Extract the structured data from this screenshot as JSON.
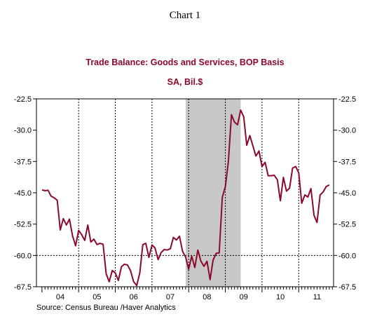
{
  "page": {
    "heading": "Chart 1"
  },
  "chart_data": {
    "type": "line",
    "title": "Trade Balance:  Goods and Services, BOP Basis",
    "subtitle": "SA, Bil.$",
    "source": "Source:  Census Bureau /Haver Analytics",
    "x_tick_labels": [
      "04",
      "05",
      "06",
      "07",
      "08",
      "09",
      "10",
      "11"
    ],
    "x_range": [
      2004.0,
      2011.75
    ],
    "y_tick_labels": [
      "-22.5",
      "-30.0",
      "-37.5",
      "-45.0",
      "-52.5",
      "-60.0",
      "-67.5"
    ],
    "y_ticks": [
      -22.5,
      -30.0,
      -37.5,
      -45.0,
      -52.5,
      -60.0,
      -67.5
    ],
    "ylim": [
      -67.5,
      -22.5
    ],
    "dashed_gridlines_at_years": [
      2005,
      2006,
      2007,
      2008,
      2009,
      2010,
      2011
    ],
    "dashed_gridline_y": -60.0,
    "recession_shading": {
      "start": 2007.917,
      "end": 2009.417
    },
    "colors": {
      "line": "#8b0a2b",
      "title": "#8b0a2b",
      "shading": "#c8c8c8",
      "axis": "#000000"
    },
    "series": [
      {
        "values": [
          [
            2004.0,
            -44.3
          ],
          [
            2004.083,
            -44.5
          ],
          [
            2004.167,
            -44.4
          ],
          [
            2004.25,
            -45.8
          ],
          [
            2004.333,
            -46.2
          ],
          [
            2004.417,
            -46.8
          ],
          [
            2004.5,
            -53.9
          ],
          [
            2004.583,
            -51.2
          ],
          [
            2004.667,
            -52.7
          ],
          [
            2004.75,
            -51.3
          ],
          [
            2004.833,
            -55.3
          ],
          [
            2004.917,
            -57.7
          ],
          [
            2005.0,
            -54.0
          ],
          [
            2005.083,
            -55.0
          ],
          [
            2005.167,
            -56.4
          ],
          [
            2005.25,
            -52.7
          ],
          [
            2005.333,
            -56.8
          ],
          [
            2005.417,
            -56.1
          ],
          [
            2005.5,
            -57.4
          ],
          [
            2005.583,
            -57.1
          ],
          [
            2005.667,
            -57.3
          ],
          [
            2005.75,
            -64.4
          ],
          [
            2005.833,
            -66.3
          ],
          [
            2005.917,
            -63.6
          ],
          [
            2006.0,
            -64.2
          ],
          [
            2006.083,
            -66.0
          ],
          [
            2006.167,
            -62.7
          ],
          [
            2006.25,
            -62.1
          ],
          [
            2006.333,
            -62.3
          ],
          [
            2006.417,
            -63.7
          ],
          [
            2006.5,
            -66.3
          ],
          [
            2006.583,
            -67.2
          ],
          [
            2006.667,
            -64.2
          ],
          [
            2006.75,
            -57.4
          ],
          [
            2006.833,
            -57.1
          ],
          [
            2006.917,
            -60.5
          ],
          [
            2007.0,
            -57.5
          ],
          [
            2007.083,
            -58.2
          ],
          [
            2007.167,
            -61.0
          ],
          [
            2007.25,
            -59.3
          ],
          [
            2007.333,
            -58.6
          ],
          [
            2007.417,
            -58.7
          ],
          [
            2007.5,
            -58.4
          ],
          [
            2007.583,
            -55.7
          ],
          [
            2007.667,
            -56.3
          ],
          [
            2007.75,
            -55.4
          ],
          [
            2007.833,
            -59.0
          ],
          [
            2007.917,
            -60.4
          ],
          [
            2008.0,
            -63.3
          ],
          [
            2008.083,
            -60.2
          ],
          [
            2008.167,
            -62.9
          ],
          [
            2008.25,
            -58.7
          ],
          [
            2008.333,
            -61.4
          ],
          [
            2008.417,
            -62.6
          ],
          [
            2008.5,
            -61.4
          ],
          [
            2008.583,
            -65.8
          ],
          [
            2008.667,
            -61.1
          ],
          [
            2008.75,
            -59.5
          ],
          [
            2008.833,
            -59.4
          ],
          [
            2008.917,
            -46.1
          ],
          [
            2009.0,
            -43.5
          ],
          [
            2009.083,
            -37.5
          ],
          [
            2009.167,
            -26.3
          ],
          [
            2009.25,
            -28.1
          ],
          [
            2009.333,
            -28.7
          ],
          [
            2009.417,
            -25.2
          ],
          [
            2009.5,
            -26.8
          ],
          [
            2009.583,
            -33.6
          ],
          [
            2009.667,
            -31.3
          ],
          [
            2009.75,
            -33.7
          ],
          [
            2009.833,
            -36.2
          ],
          [
            2009.917,
            -35.0
          ],
          [
            2010.0,
            -38.7
          ],
          [
            2010.083,
            -37.7
          ],
          [
            2010.167,
            -40.9
          ],
          [
            2010.25,
            -40.9
          ],
          [
            2010.333,
            -40.8
          ],
          [
            2010.417,
            -41.9
          ],
          [
            2010.5,
            -46.9
          ],
          [
            2010.583,
            -41.3
          ],
          [
            2010.667,
            -44.6
          ],
          [
            2010.75,
            -43.9
          ],
          [
            2010.833,
            -39.1
          ],
          [
            2010.917,
            -38.7
          ],
          [
            2011.0,
            -40.2
          ],
          [
            2011.083,
            -47.5
          ],
          [
            2011.167,
            -45.5
          ],
          [
            2011.25,
            -46.0
          ],
          [
            2011.333,
            -44.0
          ],
          [
            2011.417,
            -50.4
          ],
          [
            2011.5,
            -52.1
          ],
          [
            2011.583,
            -45.5
          ],
          [
            2011.667,
            -44.8
          ],
          [
            2011.75,
            -43.5
          ],
          [
            2011.833,
            -43.1
          ]
        ]
      }
    ]
  }
}
